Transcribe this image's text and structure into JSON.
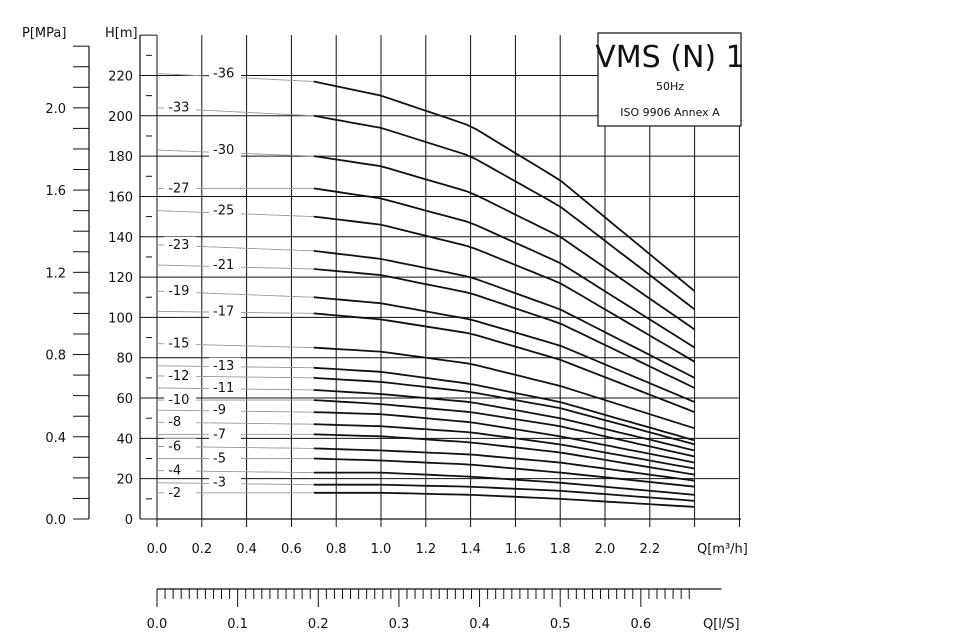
{
  "title_block": {
    "model": "VMS (N) 1",
    "frequency": "50Hz",
    "standard": "ISO 9906 Annex A"
  },
  "axes": {
    "head_label": "H[m]",
    "pressure_label": "P[MPa]",
    "flow_m3h_label": "Q[m³/h]",
    "flow_ls_label": "Q[l/S]"
  },
  "colors": {
    "grid": "#111111",
    "curve_solid": "#111111",
    "curve_faint": "#999999"
  },
  "chart_data": {
    "type": "line",
    "title": "VMS (N) 1",
    "xlabel": "Q[m³/h]",
    "ylabel": "H[m]",
    "xlim": [
      0,
      2.4
    ],
    "ylim": [
      0,
      240
    ],
    "x_ticks": [
      "0.0",
      "0.2",
      "0.4",
      "0.6",
      "0.8",
      "1.0",
      "1.2",
      "1.4",
      "1.6",
      "1.8",
      "2.0",
      "2.2"
    ],
    "y_ticks": [
      "0",
      "20",
      "40",
      "60",
      "80",
      "100",
      "120",
      "140",
      "160",
      "180",
      "200",
      "220"
    ],
    "pressure_axis": {
      "label": "P[MPa]",
      "ticks": [
        "0.0",
        "0.4",
        "0.8",
        "1.2",
        "1.6",
        "2.0"
      ]
    },
    "secondary_x_axis": {
      "label": "Q[l/S]",
      "ticks": [
        "0.0",
        "0.1",
        "0.2",
        "0.3",
        "0.4",
        "0.5",
        "0.6"
      ]
    },
    "x": [
      0.0,
      0.7,
      1.0,
      1.4,
      1.8,
      2.4
    ],
    "solid_range": [
      0.7,
      2.4
    ],
    "grid": true,
    "series": [
      {
        "name": "-36",
        "values": [
          221,
          217,
          210,
          195,
          168,
          113
        ]
      },
      {
        "name": "-33",
        "values": [
          204,
          200,
          194,
          180,
          155,
          104
        ]
      },
      {
        "name": "-30",
        "values": [
          183,
          180,
          175,
          162,
          140,
          94
        ]
      },
      {
        "name": "-27",
        "values": [
          164,
          164,
          159,
          147,
          127,
          85
        ]
      },
      {
        "name": "-25",
        "values": [
          153,
          150,
          146,
          135,
          117,
          78
        ]
      },
      {
        "name": "-23",
        "values": [
          136,
          133,
          129,
          120,
          104,
          70
        ]
      },
      {
        "name": "-21",
        "values": [
          126,
          124,
          121,
          112,
          97,
          65
        ]
      },
      {
        "name": "-19",
        "values": [
          113,
          110,
          107,
          99,
          86,
          58
        ]
      },
      {
        "name": "-17",
        "values": [
          103,
          102,
          99,
          92,
          79,
          53
        ]
      },
      {
        "name": "-15",
        "values": [
          87,
          85,
          83,
          77,
          66,
          45
        ]
      },
      {
        "name": "-13",
        "values": [
          76,
          75,
          73,
          67,
          58,
          39
        ]
      },
      {
        "name": "-12",
        "values": [
          71,
          70,
          68,
          63,
          55,
          37
        ]
      },
      {
        "name": "-11",
        "values": [
          65,
          64,
          62,
          58,
          50,
          34
        ]
      },
      {
        "name": "-10",
        "values": [
          59,
          59,
          57,
          53,
          46,
          31
        ]
      },
      {
        "name": "-9",
        "values": [
          54,
          53,
          52,
          48,
          41,
          28
        ]
      },
      {
        "name": "-8",
        "values": [
          48,
          47,
          46,
          43,
          37,
          25
        ]
      },
      {
        "name": "-7",
        "values": [
          42,
          42,
          41,
          38,
          33,
          22
        ]
      },
      {
        "name": "-6",
        "values": [
          36,
          35,
          34,
          32,
          28,
          19
        ]
      },
      {
        "name": "-5",
        "values": [
          30,
          30,
          29,
          27,
          23,
          16
        ]
      },
      {
        "name": "-4",
        "values": [
          24,
          23,
          23,
          21,
          18,
          12
        ]
      },
      {
        "name": "-3",
        "values": [
          18,
          17,
          17,
          16,
          14,
          9
        ]
      },
      {
        "name": "-2",
        "values": [
          13,
          13,
          13,
          12,
          10,
          6
        ]
      }
    ]
  }
}
